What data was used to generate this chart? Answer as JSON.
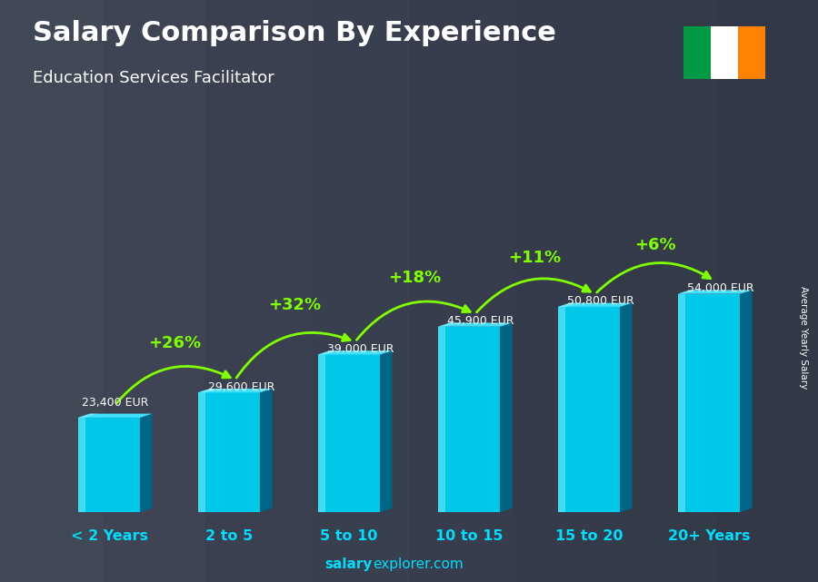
{
  "title": "Salary Comparison By Experience",
  "subtitle": "Education Services Facilitator",
  "categories": [
    "< 2 Years",
    "2 to 5",
    "5 to 10",
    "10 to 15",
    "15 to 20",
    "20+ Years"
  ],
  "values": [
    23400,
    29600,
    39000,
    45900,
    50800,
    54000
  ],
  "labels": [
    "23,400 EUR",
    "29,600 EUR",
    "39,000 EUR",
    "45,900 EUR",
    "50,800 EUR",
    "54,000 EUR"
  ],
  "pct_changes": [
    "+26%",
    "+32%",
    "+18%",
    "+11%",
    "+6%"
  ],
  "bar_front": "#00C8E8",
  "bar_left": "#00AACC",
  "bar_right": "#006688",
  "bar_top": "#40E0FF",
  "bg_color": "#4a5a6a",
  "title_color": "#FFFFFF",
  "subtitle_color": "#FFFFFF",
  "label_color": "#FFFFFF",
  "pct_color": "#7FFF00",
  "cat_color": "#00DDFF",
  "watermark_color": "#00DDFF",
  "ylabel_text": "Average Yearly Salary",
  "watermark_bold": "salary",
  "watermark_reg": "explorer.com",
  "flag_green": "#009A44",
  "flag_white": "#FFFFFF",
  "flag_orange": "#FF8200"
}
